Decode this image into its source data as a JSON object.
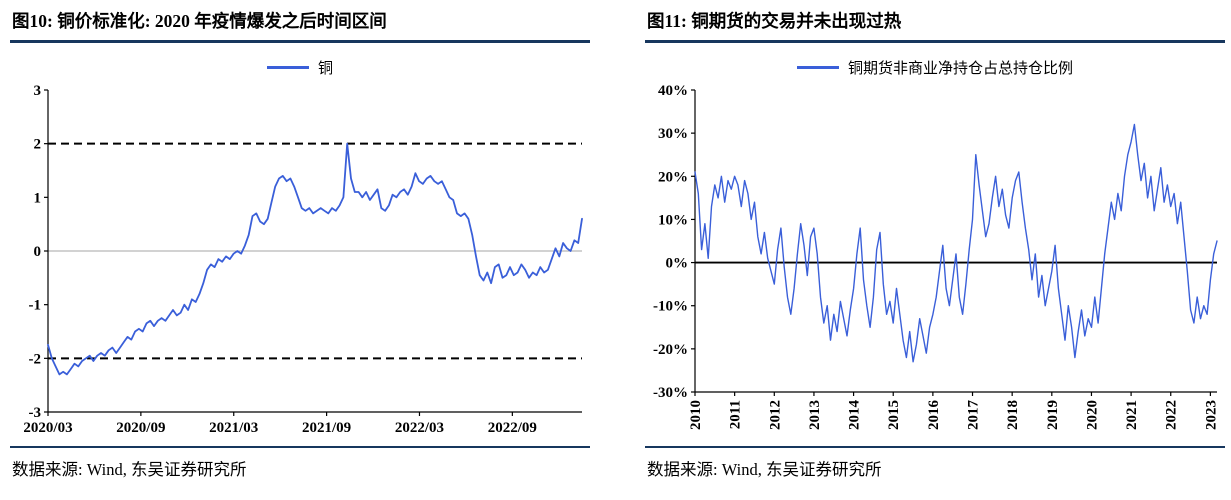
{
  "colors": {
    "accent": "#3a5fd9",
    "rule": "#17375e",
    "zero_light": "#a6a6a6",
    "axis": "#000000"
  },
  "figure10": {
    "source": "数据来源: Wind, 东吴证券研究所"
  },
  "figure11": {
    "source": "数据来源: Wind, 东吴证券研究所"
  },
  "chart_data": [
    {
      "type": "line",
      "title": "图10: 铜价标准化: 2020 年疫情爆发之后时间区间",
      "legend": "铜",
      "xlabel": "",
      "ylabel": "",
      "ylim": [
        -3,
        3
      ],
      "ytick_step": 1,
      "ytick_suffix": "",
      "grid": false,
      "legend_position": "top-center",
      "zero_line": "light",
      "guides": [
        2,
        -2
      ],
      "x_total": 34.5,
      "x_rotate": false,
      "x_tick_positions": [
        0,
        6,
        12,
        18,
        24,
        30
      ],
      "x_tick_labels": [
        "2020/03",
        "2020/09",
        "2021/03",
        "2021/09",
        "2022/03",
        "2022/09"
      ],
      "values": [
        -1.75,
        -2.0,
        -2.15,
        -2.3,
        -2.25,
        -2.3,
        -2.2,
        -2.1,
        -2.15,
        -2.05,
        -2.0,
        -1.95,
        -2.05,
        -1.95,
        -1.9,
        -1.95,
        -1.85,
        -1.8,
        -1.9,
        -1.8,
        -1.7,
        -1.6,
        -1.65,
        -1.5,
        -1.45,
        -1.5,
        -1.35,
        -1.3,
        -1.4,
        -1.3,
        -1.25,
        -1.3,
        -1.2,
        -1.1,
        -1.2,
        -1.15,
        -1.0,
        -1.1,
        -0.9,
        -0.95,
        -0.8,
        -0.6,
        -0.35,
        -0.25,
        -0.3,
        -0.15,
        -0.2,
        -0.1,
        -0.15,
        -0.05,
        0.0,
        -0.05,
        0.1,
        0.3,
        0.65,
        0.7,
        0.55,
        0.5,
        0.6,
        0.9,
        1.2,
        1.35,
        1.4,
        1.3,
        1.35,
        1.2,
        1.0,
        0.8,
        0.75,
        0.8,
        0.7,
        0.75,
        0.8,
        0.75,
        0.7,
        0.8,
        0.75,
        0.85,
        1.0,
        2.0,
        1.35,
        1.1,
        1.1,
        1.0,
        1.1,
        0.95,
        1.05,
        1.15,
        0.8,
        0.75,
        0.85,
        1.05,
        1.0,
        1.1,
        1.15,
        1.05,
        1.2,
        1.45,
        1.3,
        1.25,
        1.35,
        1.4,
        1.3,
        1.25,
        1.3,
        1.15,
        1.0,
        0.95,
        0.7,
        0.65,
        0.7,
        0.6,
        0.3,
        -0.1,
        -0.45,
        -0.55,
        -0.4,
        -0.6,
        -0.3,
        -0.25,
        -0.5,
        -0.45,
        -0.3,
        -0.45,
        -0.4,
        -0.25,
        -0.35,
        -0.5,
        -0.4,
        -0.45,
        -0.3,
        -0.4,
        -0.35,
        -0.15,
        0.05,
        -0.1,
        0.15,
        0.05,
        0.0,
        0.2,
        0.15,
        0.6
      ]
    },
    {
      "type": "line",
      "title": "图11: 铜期货的交易并未出现过热",
      "legend": "铜期货非商业净持仓占总持仓比例",
      "xlabel": "",
      "ylabel": "",
      "ylim": [
        -30,
        40
      ],
      "ytick_step": 10,
      "ytick_suffix": "%",
      "grid": false,
      "legend_position": "top-center",
      "zero_line": "bold",
      "guides": [],
      "x_total": 158,
      "x_rotate": true,
      "x_tick_positions": [
        0,
        12,
        24,
        36,
        48,
        60,
        72,
        84,
        96,
        108,
        120,
        132,
        144,
        156
      ],
      "x_tick_labels": [
        "2010",
        "2011",
        "2012",
        "2013",
        "2014",
        "2015",
        "2016",
        "2017",
        "2018",
        "2019",
        "2020",
        "2021",
        "2022",
        "2023"
      ],
      "values": [
        21,
        16,
        3,
        9,
        1,
        13,
        18,
        15,
        20,
        14,
        19,
        17,
        20,
        18,
        13,
        19,
        16,
        10,
        14,
        6,
        2,
        7,
        1,
        -2,
        -5,
        3,
        8,
        -1,
        -8,
        -12,
        -6,
        2,
        9,
        4,
        -3,
        6,
        8,
        2,
        -8,
        -14,
        -10,
        -18,
        -12,
        -16,
        -9,
        -13,
        -17,
        -11,
        -6,
        2,
        8,
        -4,
        -10,
        -15,
        -8,
        3,
        7,
        -5,
        -12,
        -9,
        -14,
        -6,
        -12,
        -18,
        -22,
        -16,
        -23,
        -19,
        -13,
        -17,
        -21,
        -15,
        -12,
        -8,
        -2,
        4,
        -6,
        -10,
        -4,
        2,
        -8,
        -12,
        -5,
        3,
        10,
        25,
        18,
        12,
        6,
        9,
        15,
        20,
        13,
        17,
        11,
        8,
        15,
        19,
        21,
        14,
        8,
        3,
        -4,
        2,
        -8,
        -3,
        -10,
        -6,
        -2,
        4,
        -6,
        -12,
        -18,
        -10,
        -15,
        -22,
        -16,
        -11,
        -17,
        -13,
        -15,
        -8,
        -14,
        -6,
        2,
        8,
        14,
        10,
        16,
        12,
        20,
        25,
        28,
        32,
        25,
        19,
        23,
        15,
        20,
        12,
        17,
        22,
        14,
        18,
        13,
        16,
        9,
        14,
        6,
        -2,
        -11,
        -14,
        -8,
        -13,
        -10,
        -12,
        -4,
        2,
        5
      ]
    }
  ]
}
